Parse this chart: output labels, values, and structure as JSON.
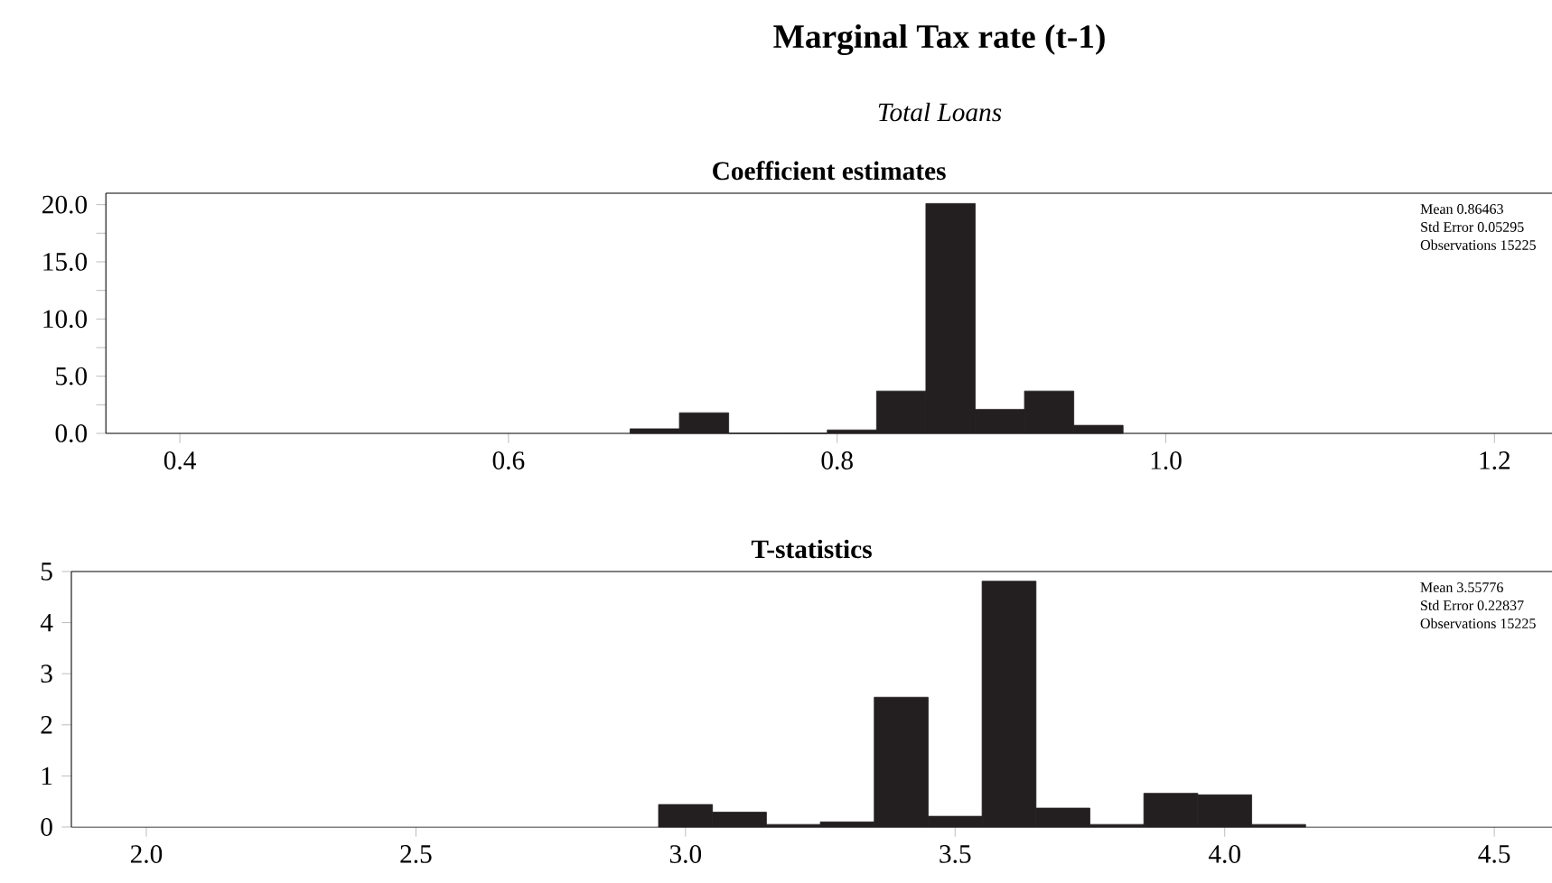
{
  "chart_data": [
    {
      "type": "histogram",
      "title": "Coefficient estimates",
      "bins": [
        0.674,
        0.704,
        0.734,
        0.764,
        0.794,
        0.824,
        0.854,
        0.884,
        0.914,
        0.944,
        0.974
      ],
      "values": [
        0.4,
        1.8,
        0,
        0,
        0.3,
        3.7,
        20.1,
        2.1,
        3.7,
        0.7
      ],
      "color": "#231f20",
      "xlim": [
        0.355,
        1.235
      ],
      "xticks": [
        0.4,
        0.6,
        0.8,
        {
          "value": 1,
          "label": "1.0"
        },
        1.2
      ],
      "ylim": [
        0,
        21
      ],
      "yticks": [
        {
          "value": 0,
          "label": "0.0"
        },
        {
          "value": 2.5,
          "label": null
        },
        {
          "value": 5,
          "label": "5.0"
        },
        {
          "value": 7.5,
          "label": null
        },
        {
          "value": 10,
          "label": "10.0"
        },
        {
          "value": 12.5,
          "label": null
        },
        {
          "value": 15,
          "label": "15.0"
        },
        {
          "value": 17.5,
          "label": null
        },
        {
          "value": 20,
          "label": "20.0"
        }
      ],
      "annotations": [
        "Marginal Tax rate (t-1)",
        "*Total Loans*",
        "Mean 0.86463",
        "Std Error 0.05295",
        "Observations 15225"
      ]
    },
    {
      "type": "histogram",
      "title": "T-statistics",
      "bins": [
        2.95,
        3.05,
        3.15,
        3.25,
        3.35,
        3.45,
        3.55,
        3.65,
        3.75,
        3.85,
        3.95,
        4.05,
        4.15
      ],
      "values": [
        0.44,
        0.29,
        0.05,
        0.1,
        2.54,
        0.21,
        4.81,
        0.37,
        0.05,
        0.66,
        0.63,
        0.05
      ],
      "color": "#231f20",
      "xlim": [
        1.861,
        4.607
      ],
      "xticks": [
        {
          "value": 2,
          "label": "2.0"
        },
        2.5,
        {
          "value": 3,
          "label": "3.0"
        },
        3.5,
        {
          "value": 4,
          "label": "4.0"
        },
        4.5
      ],
      "ylim": [
        0,
        5
      ],
      "yticks": [
        0,
        1,
        2,
        3,
        4,
        5
      ],
      "annotations": [
        "Mean 3.55776",
        "Std Error 0.22837",
        "Observations 15225"
      ]
    }
  ]
}
